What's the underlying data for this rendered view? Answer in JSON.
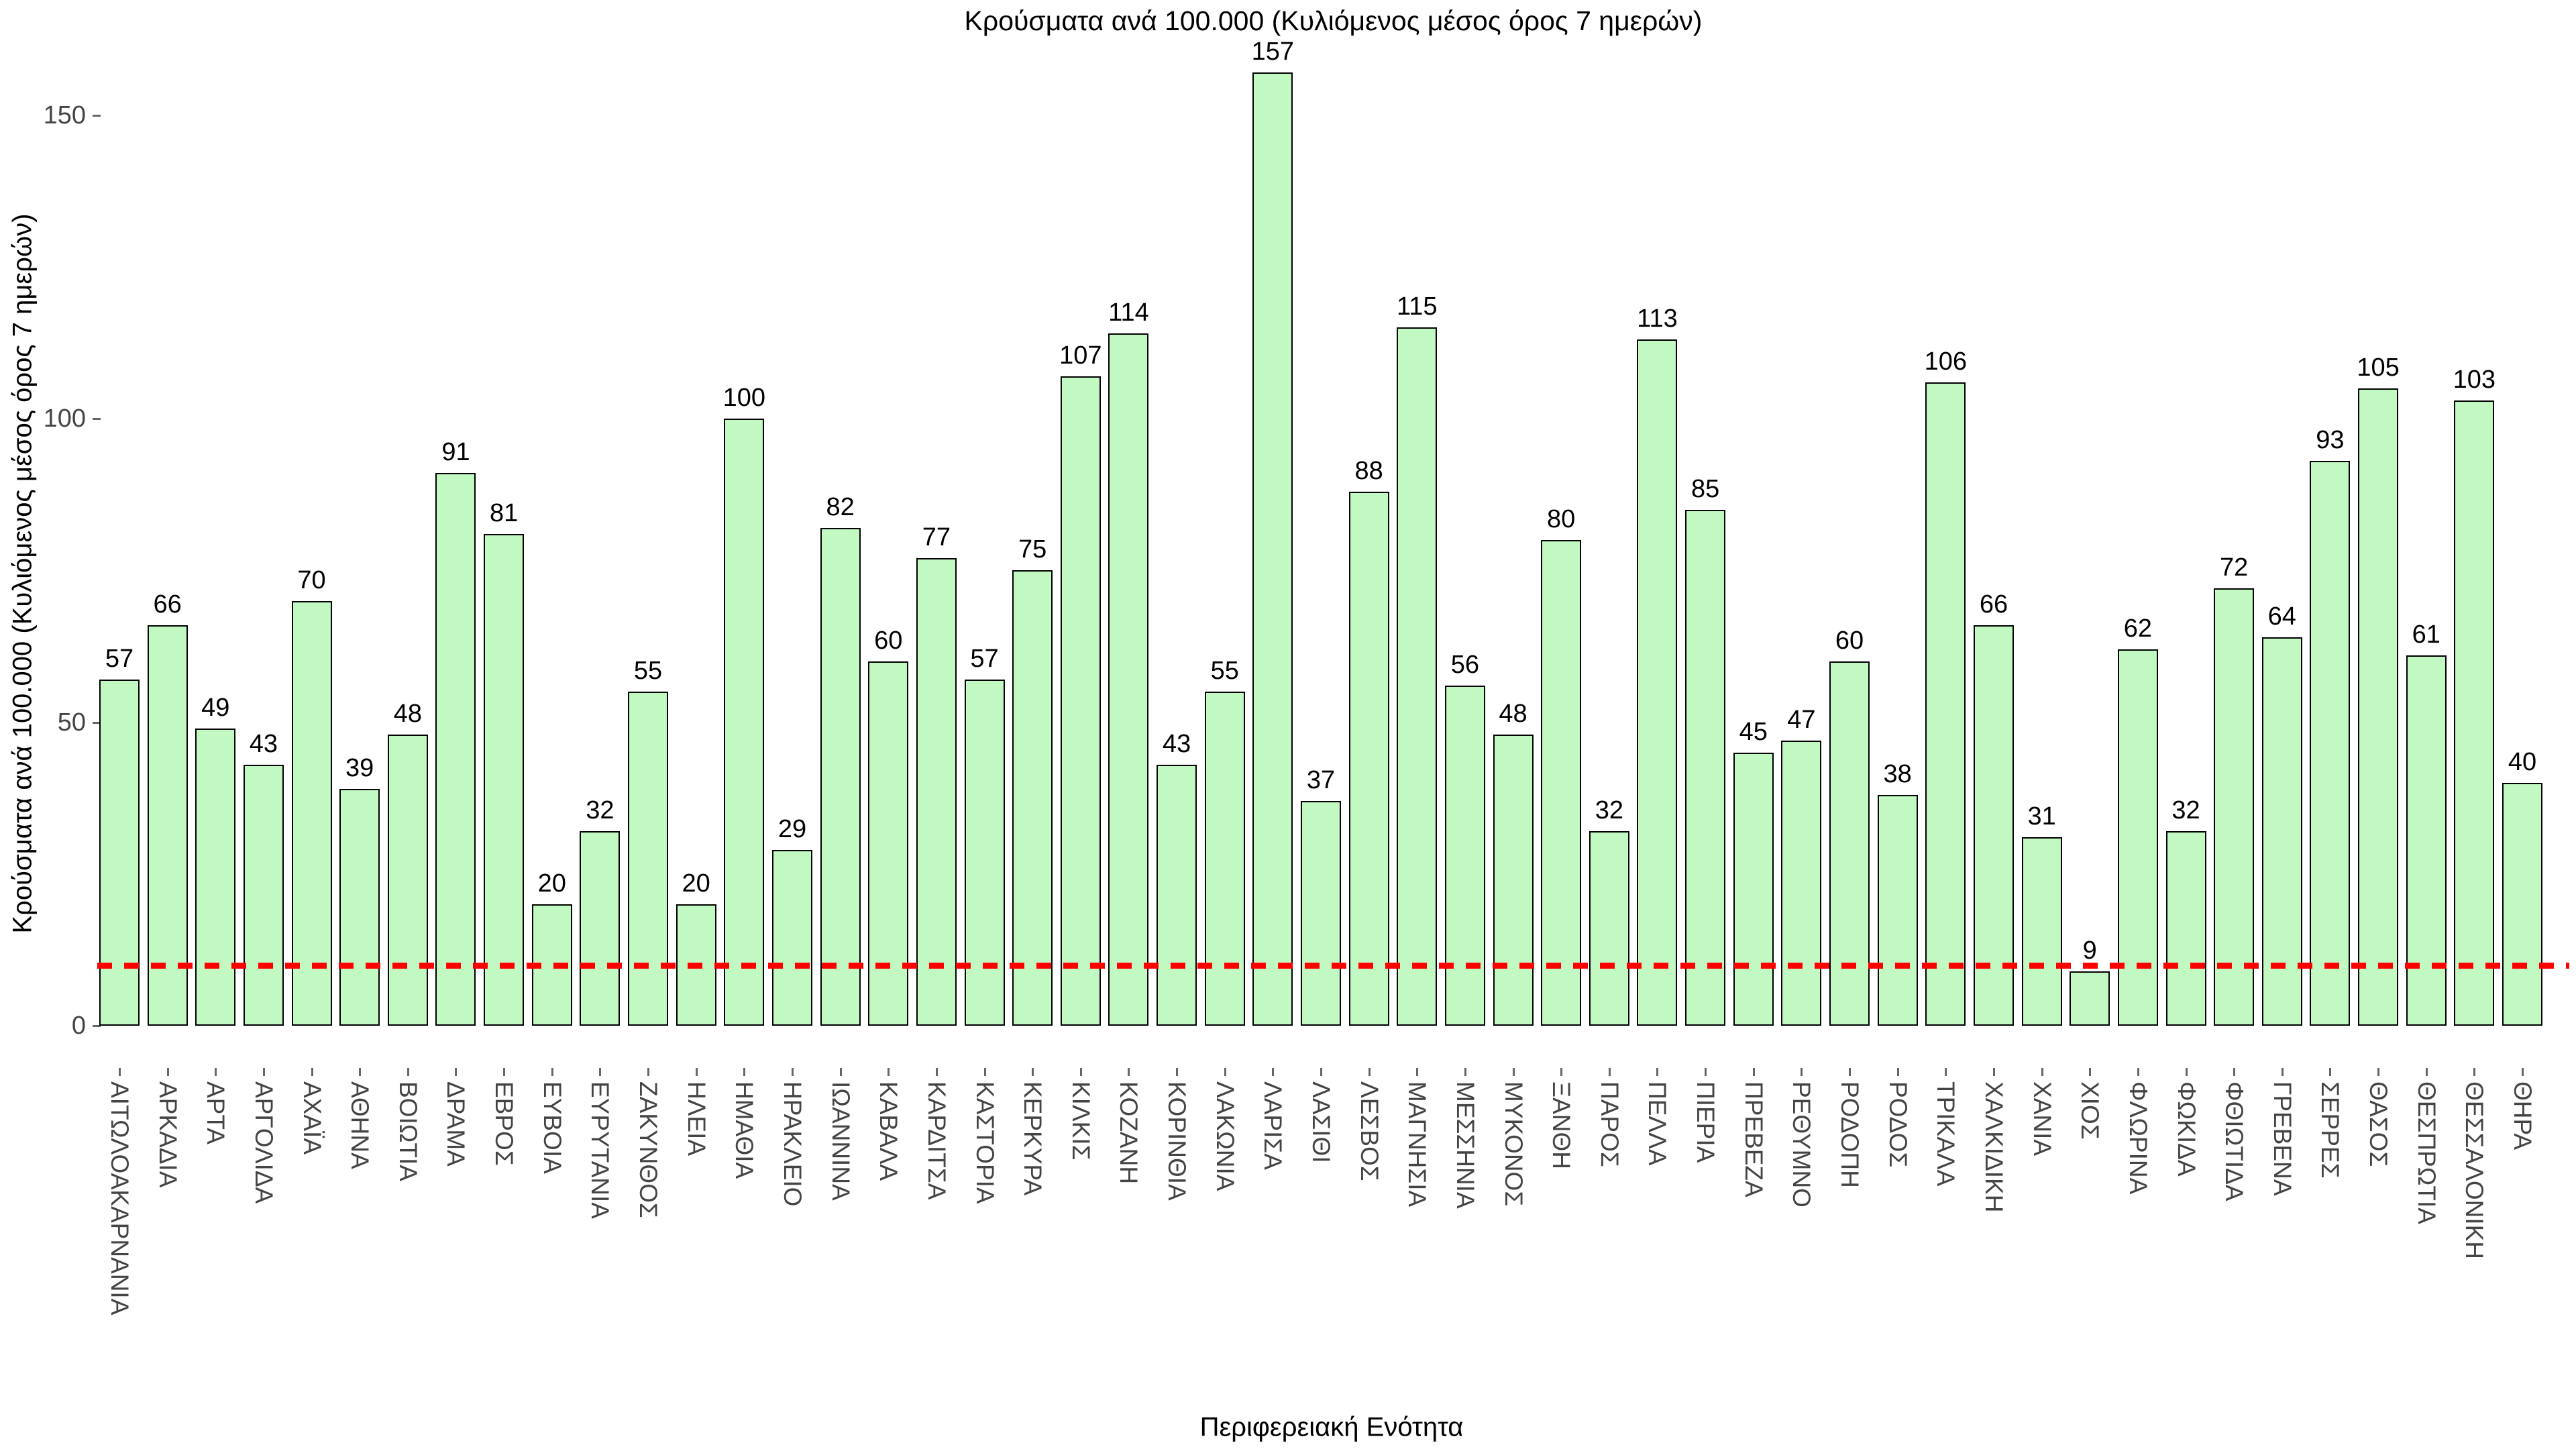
{
  "title": "Κρούσματα ανά 100.000 (Κυλιόμενος μέσος όρος 7 ημερών)",
  "x_axis_title": "Περιφερειακή Ενότητα",
  "y_axis_title": "Κρούσματα ανά 100.000 (Κυλιόμενος μέσος όρος 7 ημερών)",
  "y_ticks": [
    0,
    50,
    100,
    150
  ],
  "colors": {
    "bar_fill": "#c2f8c2",
    "bar_border": "#000000",
    "threshold_line": "#ff0000",
    "tick_text": "#444444",
    "title_text": "#000000"
  },
  "threshold_line": {
    "value": 10,
    "style": "dashed",
    "color": "#ff0000"
  },
  "chart_data": {
    "type": "bar",
    "title": "Κρούσματα ανά 100.000 (Κυλιόμενος μέσος όρος 7 ημερών)",
    "xlabel": "Περιφερειακή Ενότητα",
    "ylabel": "Κρούσματα ανά 100.000 (Κυλιόμενος μέσος όρος 7 ημερών)",
    "ylim": [
      0,
      165
    ],
    "grid": false,
    "legend": "none",
    "annotations": "value labels above each bar; red dashed horizontal threshold line at y=10",
    "categories": [
      "ΑΙΤΩΛΟΑΚΑΡΝΑΝΙΑ",
      "ΑΡΚΑΔΙΑ",
      "ΑΡΤΑ",
      "ΑΡΓΟΛΙΔΑ",
      "ΑΧΑΪΑ",
      "ΑΘΗΝΑ",
      "ΒΟΙΩΤΙΑ",
      "ΔΡΑΜΑ",
      "ΕΒΡΟΣ",
      "ΕΥΒΟΙΑ",
      "ΕΥΡΥΤΑΝΙΑ",
      "ΖΑΚΥΝΘΟΣ",
      "ΗΛΕΙΑ",
      "ΗΜΑΘΙΑ",
      "ΗΡΑΚΛΕΙΟ",
      "ΙΩΑΝΝΙΝΑ",
      "ΚΑΒΑΛΑ",
      "ΚΑΡΔΙΤΣΑ",
      "ΚΑΣΤΟΡΙΑ",
      "ΚΕΡΚΥΡΑ",
      "ΚΙΛΚΙΣ",
      "ΚΟΖΑΝΗ",
      "ΚΟΡΙΝΘΙΑ",
      "ΛΑΚΩΝΙΑ",
      "ΛΑΡΙΣΑ",
      "ΛΑΣΙΘΙ",
      "ΛΕΣΒΟΣ",
      "ΜΑΓΝΗΣΙΑ",
      "ΜΕΣΣΗΝΙΑ",
      "ΜΥΚΟΝΟΣ",
      "ΞΑΝΘΗ",
      "ΠΑΡΟΣ",
      "ΠΕΛΛΑ",
      "ΠΙΕΡΙΑ",
      "ΠΡΕΒΕΖΑ",
      "ΡΕΘΥΜΝΟ",
      "ΡΟΔΟΠΗ",
      "ΡΟΔΟΣ",
      "ΤΡΙΚΑΛΑ",
      "ΧΑΛΚΙΔΙΚΗ",
      "ΧΑΝΙΑ",
      "ΧΙΟΣ",
      "ΦΛΩΡΙΝΑ",
      "ΦΩΚΙΔΑ",
      "ΦΘΙΩΤΙΔΑ",
      "ΓΡΕΒΕΝΑ",
      "ΣΕΡΡΕΣ",
      "ΘΑΣΟΣ",
      "ΘΕΣΠΡΩΤΙΑ",
      "ΘΕΣΣΑΛΟΝΙΚΗ",
      "ΘΗΡΑ"
    ],
    "values": [
      57,
      66,
      49,
      43,
      70,
      39,
      48,
      91,
      81,
      20,
      32,
      55,
      20,
      100,
      29,
      82,
      60,
      77,
      57,
      75,
      107,
      114,
      43,
      55,
      157,
      37,
      88,
      115,
      56,
      48,
      80,
      32,
      113,
      85,
      45,
      47,
      60,
      38,
      106,
      66,
      31,
      9,
      62,
      32,
      72,
      64,
      93,
      105,
      61,
      103,
      40
    ]
  }
}
